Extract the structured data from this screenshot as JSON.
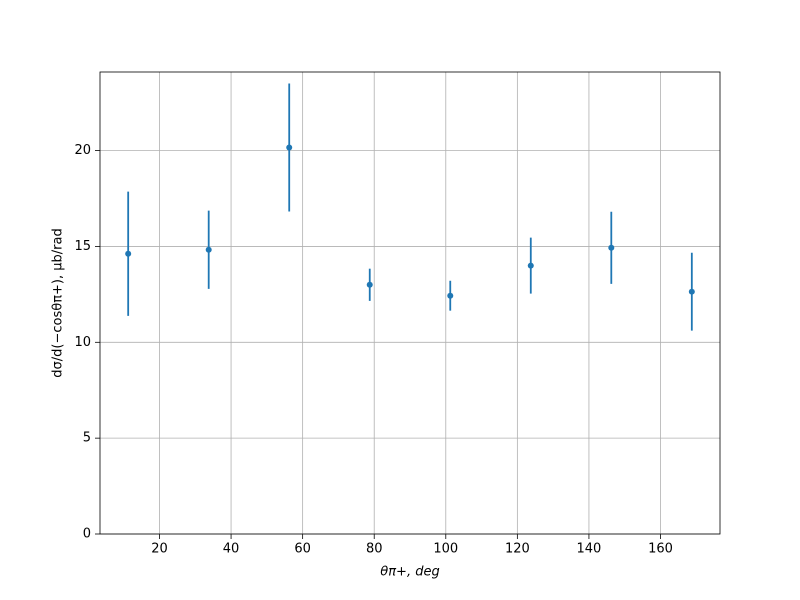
{
  "chart_data": {
    "type": "errorbar",
    "x_label": "θπ+, deg",
    "y_label": "dσ/d(−cosθπ+), μb/rad",
    "x": [
      11.25,
      33.75,
      56.25,
      78.75,
      101.25,
      123.75,
      146.25,
      168.75
    ],
    "values": [
      14.62,
      14.83,
      20.16,
      13.0,
      12.43,
      14.0,
      14.93,
      12.64
    ],
    "errors": [
      3.24,
      2.04,
      3.34,
      0.84,
      0.78,
      1.46,
      1.88,
      2.03
    ],
    "color": "#1f77b4",
    "xlim": [
      3.375,
      176.625
    ],
    "ylim": [
      0,
      24.1
    ],
    "xticks": [
      20,
      40,
      60,
      80,
      100,
      120,
      140,
      160
    ],
    "yticks": [
      0,
      5,
      10,
      15,
      20
    ],
    "grid": true
  }
}
